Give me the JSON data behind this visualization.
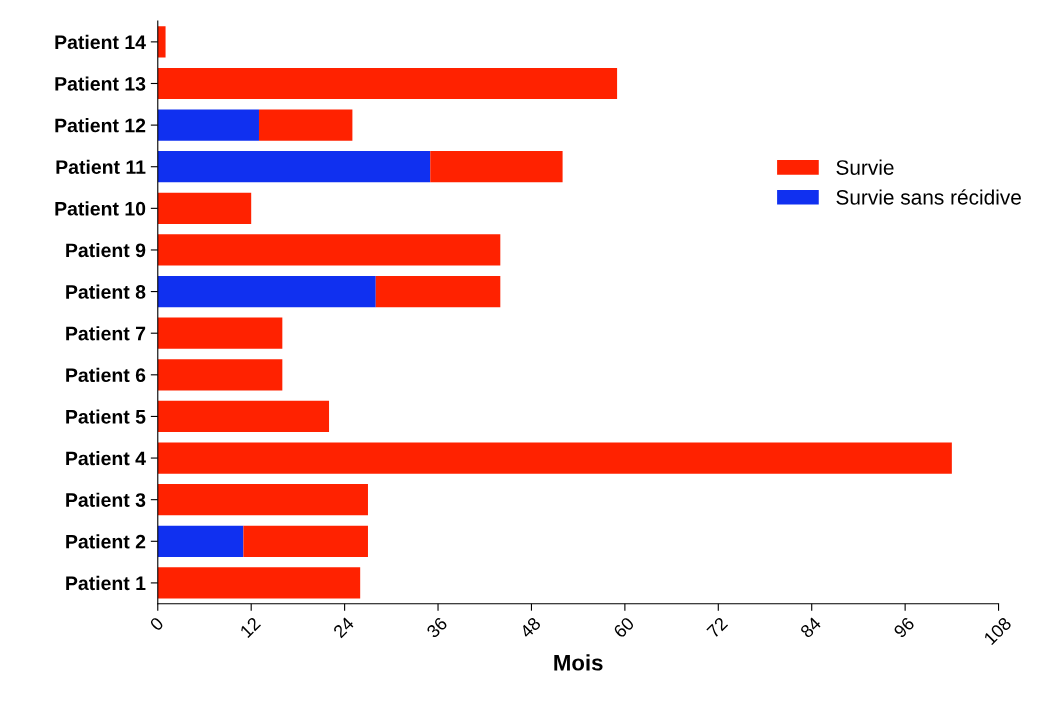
{
  "chart_data": {
    "type": "bar",
    "orientation": "horizontal",
    "stacked": true,
    "xlabel": "Mois",
    "categories": [
      "Patient 14",
      "Patient 13",
      "Patient 12",
      "Patient 11",
      "Patient 10",
      "Patient 9",
      "Patient 8",
      "Patient 7",
      "Patient 6",
      "Patient 5",
      "Patient 4",
      "Patient 3",
      "Patient 2",
      "Patient 1"
    ],
    "series": [
      {
        "name": "Survie sans récidive",
        "color": "#1030f0",
        "values": [
          null,
          null,
          13,
          35,
          null,
          null,
          28,
          null,
          null,
          null,
          null,
          null,
          11,
          null
        ]
      },
      {
        "name": "Survie",
        "color": "#ff2200",
        "values": [
          1,
          59,
          12,
          17,
          12,
          44,
          16,
          16,
          16,
          22,
          102,
          27,
          16,
          26
        ]
      }
    ],
    "xlim": [
      0,
      108
    ],
    "xticks": [
      0,
      12,
      24,
      36,
      48,
      60,
      72,
      84,
      96,
      108
    ],
    "grid": false,
    "legend": "right"
  }
}
